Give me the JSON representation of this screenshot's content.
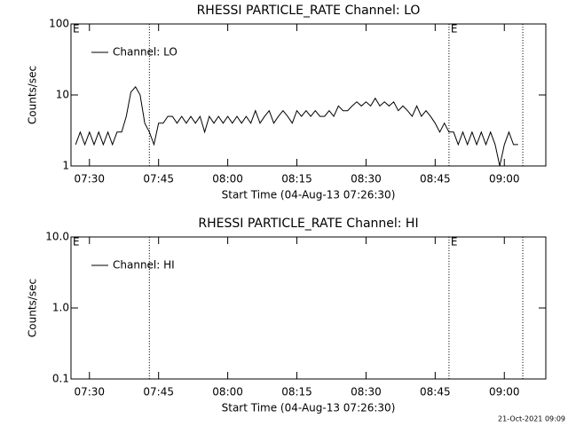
{
  "chart_data": [
    {
      "type": "line",
      "title": "RHESSI PARTICLE_RATE Channel: LO",
      "xlabel": "Start Time (04-Aug-13 07:26:30)",
      "ylabel": "Counts/sec",
      "log": true,
      "legend": "upper left",
      "xlim": [
        "07:26",
        "09:09"
      ],
      "xticks": [
        "07:30",
        "07:45",
        "08:00",
        "08:15",
        "08:30",
        "08:45",
        "09:00"
      ],
      "ylim": [
        1,
        100
      ],
      "yticks": [
        1,
        10,
        100
      ],
      "markers": [
        "07:43",
        "08:48",
        "09:04"
      ],
      "annotations": [
        {
          "text": "E",
          "x": "07:26"
        },
        {
          "text": "E",
          "x": "08:48"
        }
      ],
      "x": [
        "07:27",
        "07:28",
        "07:29",
        "07:30",
        "07:31",
        "07:32",
        "07:33",
        "07:34",
        "07:35",
        "07:36",
        "07:37",
        "07:38",
        "07:39",
        "07:40",
        "07:41",
        "07:42",
        "07:43",
        "07:44",
        "07:45",
        "07:46",
        "07:47",
        "07:48",
        "07:49",
        "07:50",
        "07:51",
        "07:52",
        "07:53",
        "07:54",
        "07:55",
        "07:56",
        "07:57",
        "07:58",
        "07:59",
        "08:00",
        "08:01",
        "08:02",
        "08:03",
        "08:04",
        "08:05",
        "08:06",
        "08:07",
        "08:08",
        "08:09",
        "08:10",
        "08:11",
        "08:12",
        "08:13",
        "08:14",
        "08:15",
        "08:16",
        "08:17",
        "08:18",
        "08:19",
        "08:20",
        "08:21",
        "08:22",
        "08:23",
        "08:24",
        "08:25",
        "08:26",
        "08:27",
        "08:28",
        "08:29",
        "08:30",
        "08:31",
        "08:32",
        "08:33",
        "08:34",
        "08:35",
        "08:36",
        "08:37",
        "08:38",
        "08:39",
        "08:40",
        "08:41",
        "08:42",
        "08:43",
        "08:44",
        "08:45",
        "08:46",
        "08:47",
        "08:48",
        "08:49",
        "08:50",
        "08:51",
        "08:52",
        "08:53",
        "08:54",
        "08:55",
        "08:56",
        "08:57",
        "08:58",
        "08:59",
        "09:00",
        "09:01",
        "09:02",
        "09:03"
      ],
      "series": [
        {
          "name": "Channel: LO",
          "color": "#000000",
          "values": [
            2,
            3,
            2,
            3,
            2,
            3,
            2,
            3,
            2,
            3,
            3,
            5,
            11,
            13,
            10,
            4,
            3,
            2,
            4,
            4,
            5,
            5,
            4,
            5,
            4,
            5,
            4,
            5,
            3,
            5,
            4,
            5,
            4,
            5,
            4,
            5,
            4,
            5,
            4,
            6,
            4,
            5,
            6,
            4,
            5,
            6,
            5,
            4,
            6,
            5,
            6,
            5,
            6,
            5,
            5,
            6,
            5,
            7,
            6,
            6,
            7,
            8,
            7,
            8,
            7,
            9,
            7,
            8,
            7,
            8,
            6,
            7,
            6,
            5,
            7,
            5,
            6,
            5,
            4,
            3,
            4,
            3,
            3,
            2,
            3,
            2,
            3,
            2,
            3,
            2,
            3,
            2,
            1,
            2,
            3,
            2,
            2
          ]
        }
      ]
    },
    {
      "type": "line",
      "title": "RHESSI PARTICLE_RATE Channel: HI",
      "xlabel": "Start Time (04-Aug-13 07:26:30)",
      "ylabel": "Counts/sec",
      "log": true,
      "legend": "upper left",
      "xlim": [
        "07:26",
        "09:09"
      ],
      "xticks": [
        "07:30",
        "07:45",
        "08:00",
        "08:15",
        "08:30",
        "08:45",
        "09:00"
      ],
      "ylim": [
        0.1,
        10
      ],
      "yticks": [
        0.1,
        {
          "value": 1,
          "label": "1.0"
        },
        {
          "value": 10,
          "label": "10.0"
        }
      ],
      "markers": [
        "07:43",
        "08:48",
        "09:04"
      ],
      "annotations": [
        {
          "text": "E",
          "x": "07:26"
        },
        {
          "text": "E",
          "x": "08:48"
        }
      ],
      "x": [],
      "series": [
        {
          "name": "Channel: HI",
          "color": "#000000",
          "values": []
        }
      ]
    }
  ],
  "footer": "21-Oct-2021 09:09"
}
